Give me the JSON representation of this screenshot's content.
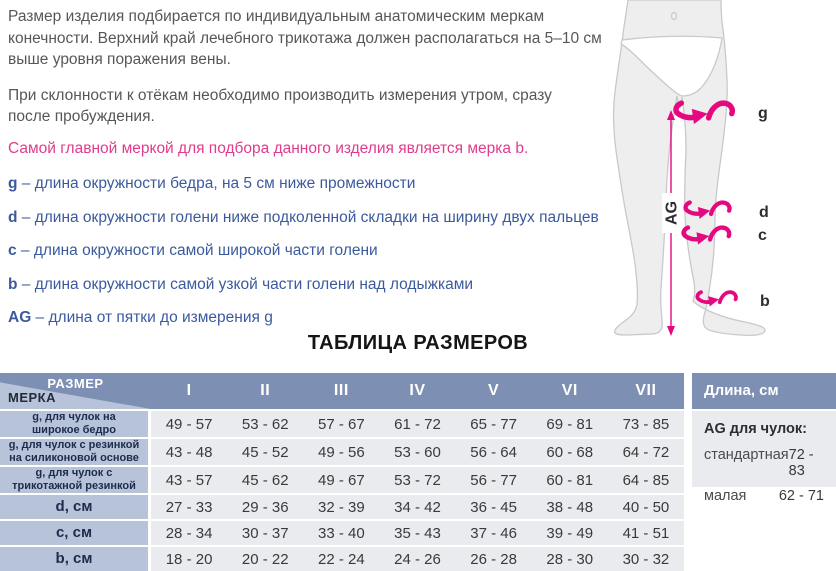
{
  "intro": {
    "p1": "Размер изделия подбирается по индивидуальным анатомическим меркам конечности. Верхний край лечебного трикотажа должен располагаться на 5–10 см выше уровня поражения вены.",
    "p2": "При склонности к отёкам необходимо производить измерения утром, сразу после пробуждения.",
    "highlight": "Самой главной меркой для подбора данного изделия является мерка b."
  },
  "measurements": [
    {
      "key": "g",
      "text": "– длина окружности бедра, на 5 см ниже промежности"
    },
    {
      "key": "d",
      "text": "– длина окружности голени ниже подколенной складки на ширину двух пальцев"
    },
    {
      "key": "c",
      "text": "– длина окружности самой широкой части голени"
    },
    {
      "key": "b",
      "text": "– длина окружности самой узкой части голени над лодыжками"
    },
    {
      "key": "AG",
      "text": "– длина от пятки до измерения g"
    }
  ],
  "diagram": {
    "g_label": "g",
    "ag_label": "AG",
    "d_label": "d",
    "c_label": "c",
    "b_label": "b"
  },
  "size_table": {
    "title": "ТАБЛИЦА РАЗМЕРОВ",
    "corner": {
      "top": "РАЗМЕР",
      "bottom": "МЕРКА"
    },
    "columns": [
      "I",
      "II",
      "III",
      "IV",
      "V",
      "VI",
      "VII"
    ],
    "rows": [
      {
        "label": "g, для чулок на широкое бедро",
        "big_label": false,
        "values": [
          "49 - 57",
          "53 - 62",
          "57 - 67",
          "61 - 72",
          "65 - 77",
          "69 - 81",
          "73 - 85"
        ]
      },
      {
        "label": "g, для чулок с резинкой на силиконовой основе",
        "big_label": false,
        "values": [
          "43 - 48",
          "45 - 52",
          "49 - 56",
          "53 - 60",
          "56 - 64",
          "60 - 68",
          "64 - 72"
        ]
      },
      {
        "label": "g, для чулок с трикотажной резинкой",
        "big_label": false,
        "values": [
          "43 - 57",
          "45 - 62",
          "49 - 67",
          "53 - 72",
          "56 - 77",
          "60 - 81",
          "64 - 85"
        ]
      },
      {
        "label": "d, см",
        "big_label": true,
        "values": [
          "27 - 33",
          "29 - 36",
          "32 - 39",
          "34 - 42",
          "36 - 45",
          "38 - 48",
          "40 - 50"
        ]
      },
      {
        "label": "c, см",
        "big_label": true,
        "values": [
          "28 - 34",
          "30 - 37",
          "33 - 40",
          "35 - 43",
          "37 - 46",
          "39 - 49",
          "41 - 51"
        ]
      },
      {
        "label": "b, см",
        "big_label": true,
        "values": [
          "18 - 20",
          "20 - 22",
          "22 - 24",
          "24 - 26",
          "26 - 28",
          "28 - 30",
          "30 - 32"
        ]
      }
    ]
  },
  "length_panel": {
    "header": "Длина, см",
    "subtitle": "AG для чулок:",
    "rows": [
      {
        "label": "стандартная",
        "value": "72 - 83"
      },
      {
        "label": "малая",
        "value": "62 - 71"
      }
    ]
  },
  "colors": {
    "accent_pink": "#e5097f",
    "pink_text": "#e03b8d",
    "blue_text": "#3b5a9d",
    "header_blue": "#7d8fb3",
    "label_cell_blue": "#b7c3d8",
    "cell_gray": "#e9ebee",
    "body_text": "#57575a",
    "data_text": "#3a3a3c"
  }
}
